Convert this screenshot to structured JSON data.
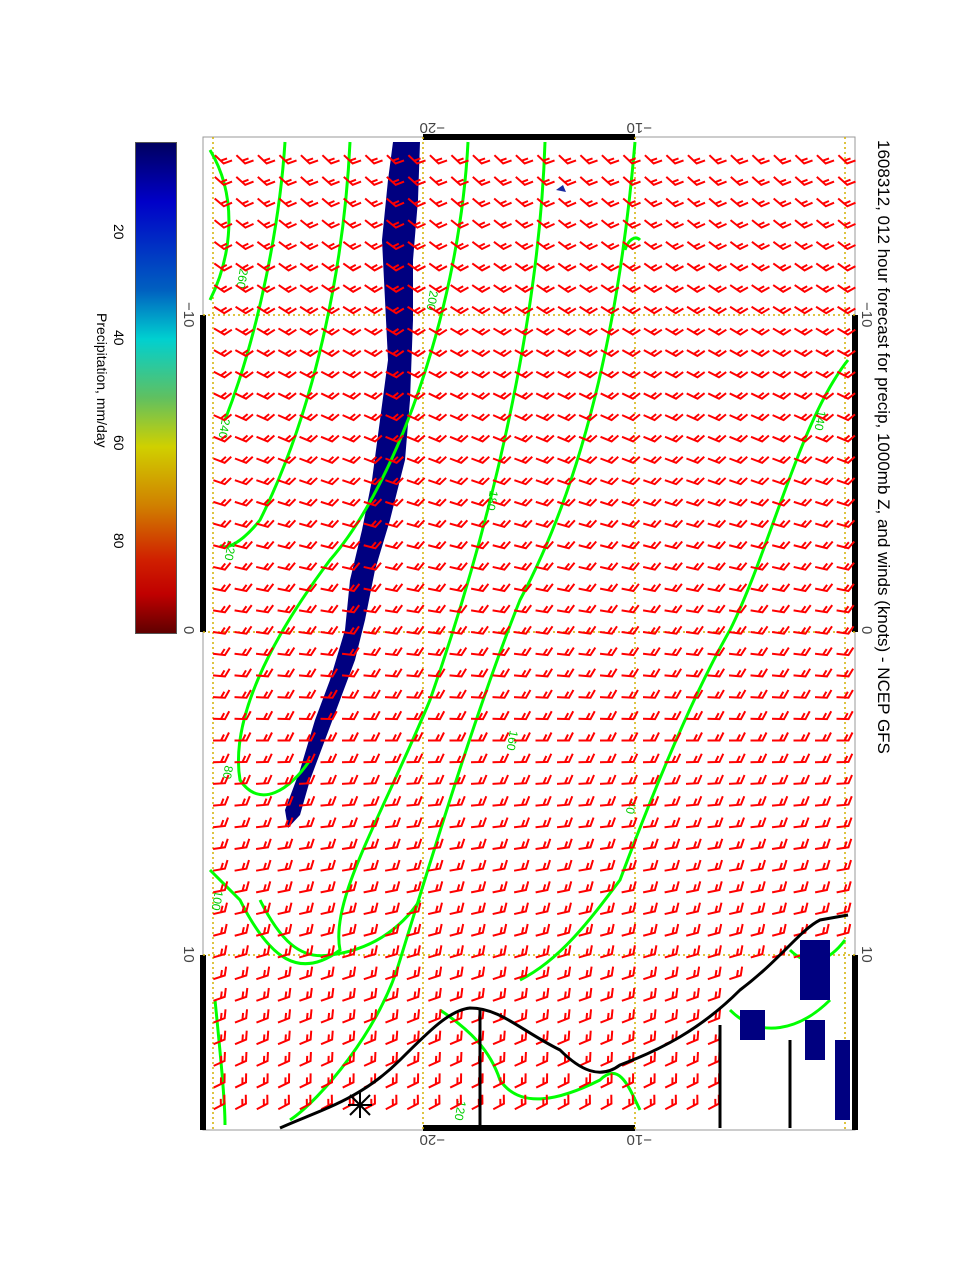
{
  "title": "1608312, 012 hour forecast for precip, 1000mb Z, and winds (knots) - NCEP GFS",
  "colorbar": {
    "label": "Precipitation, mm/day",
    "ticks": [
      "20",
      "40",
      "60",
      "80"
    ],
    "colors": [
      "#000060",
      "#0000c8",
      "#00d0d0",
      "#d0d000",
      "#d08000",
      "#c00000",
      "#600000"
    ]
  },
  "axes": {
    "longitude_ticks": [
      "−10",
      "0",
      "10"
    ],
    "latitude_ticks": [
      "−20",
      "−10"
    ]
  },
  "contour_labels": [
    "260",
    "240",
    "220",
    "200",
    "180",
    "160",
    "140",
    "120",
    "100",
    "80",
    "40"
  ],
  "colors": {
    "wind": "#ff0000",
    "contour": "#00ff00",
    "precip": "#000080",
    "grid": "#d4b000",
    "coast": "#000000"
  }
}
